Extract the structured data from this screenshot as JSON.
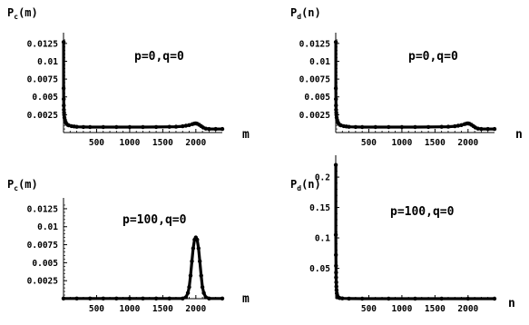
{
  "chart_data": [
    {
      "type": "scatter",
      "ylabel": "P",
      "ylabel_sub": "c",
      "ylabel_arg": "(m)",
      "xlabel": "m",
      "annotation": "p=0,q=0",
      "xlim": [
        0,
        2400
      ],
      "ylim": [
        0,
        0.0135
      ],
      "xticks": [
        500,
        1000,
        1500,
        2000
      ],
      "xtick_labels": [
        "500",
        "1000",
        "1500",
        "2000"
      ],
      "yticks": [
        0.0025,
        0.005,
        0.0075,
        0.01,
        0.0125
      ],
      "ytick_labels": [
        "0.0025",
        "0.005",
        "0.0075",
        "0.01",
        "0.0125"
      ],
      "points": [
        [
          1,
          0.0127
        ],
        [
          2,
          0.0062
        ],
        [
          3,
          0.0047
        ],
        [
          4,
          0.0038
        ],
        [
          6,
          0.0032
        ],
        [
          8,
          0.0028
        ],
        [
          10,
          0.0025
        ],
        [
          14,
          0.0021
        ],
        [
          20,
          0.0018
        ],
        [
          30,
          0.0015
        ],
        [
          40,
          0.0013
        ],
        [
          60,
          0.0011
        ],
        [
          80,
          0.001
        ],
        [
          120,
          0.0009
        ],
        [
          160,
          0.00085
        ],
        [
          200,
          0.0008
        ],
        [
          300,
          0.00078
        ],
        [
          400,
          0.00077
        ],
        [
          600,
          0.00076
        ],
        [
          800,
          0.00076
        ],
        [
          1000,
          0.00076
        ],
        [
          1200,
          0.00077
        ],
        [
          1400,
          0.00078
        ],
        [
          1600,
          0.0008
        ],
        [
          1700,
          0.00082
        ],
        [
          1800,
          0.00088
        ],
        [
          1850,
          0.00095
        ],
        [
          1900,
          0.00105
        ],
        [
          1950,
          0.00118
        ],
        [
          1980,
          0.00126
        ],
        [
          2000,
          0.00128
        ],
        [
          2020,
          0.00124
        ],
        [
          2050,
          0.0011
        ],
        [
          2080,
          0.0009
        ],
        [
          2110,
          0.0007
        ],
        [
          2150,
          0.00055
        ],
        [
          2200,
          0.0005
        ],
        [
          2300,
          0.0005
        ],
        [
          2400,
          0.0005
        ]
      ]
    },
    {
      "type": "scatter",
      "ylabel": "P",
      "ylabel_sub": "d",
      "ylabel_arg": "(n)",
      "xlabel": "n",
      "annotation": "p=0,q=0",
      "xlim": [
        0,
        2400
      ],
      "ylim": [
        0,
        0.0135
      ],
      "xticks": [
        500,
        1000,
        1500,
        2000
      ],
      "xtick_labels": [
        "500",
        "1000",
        "1500",
        "2000"
      ],
      "yticks": [
        0.0025,
        0.005,
        0.0075,
        0.01,
        0.0125
      ],
      "ytick_labels": [
        "0.0025",
        "0.005",
        "0.0075",
        "0.01",
        "0.0125"
      ],
      "points": [
        [
          1,
          0.0127
        ],
        [
          2,
          0.0062
        ],
        [
          3,
          0.0047
        ],
        [
          4,
          0.0038
        ],
        [
          6,
          0.0032
        ],
        [
          8,
          0.0028
        ],
        [
          10,
          0.0025
        ],
        [
          14,
          0.0021
        ],
        [
          20,
          0.0018
        ],
        [
          30,
          0.0015
        ],
        [
          40,
          0.0013
        ],
        [
          60,
          0.0011
        ],
        [
          80,
          0.001
        ],
        [
          120,
          0.0009
        ],
        [
          160,
          0.00085
        ],
        [
          200,
          0.0008
        ],
        [
          300,
          0.00078
        ],
        [
          400,
          0.00077
        ],
        [
          600,
          0.00076
        ],
        [
          800,
          0.00076
        ],
        [
          1000,
          0.00076
        ],
        [
          1200,
          0.00077
        ],
        [
          1400,
          0.00078
        ],
        [
          1600,
          0.0008
        ],
        [
          1700,
          0.00082
        ],
        [
          1800,
          0.00088
        ],
        [
          1850,
          0.00095
        ],
        [
          1900,
          0.00105
        ],
        [
          1950,
          0.00118
        ],
        [
          1980,
          0.00126
        ],
        [
          2000,
          0.00128
        ],
        [
          2020,
          0.00124
        ],
        [
          2050,
          0.0011
        ],
        [
          2080,
          0.0009
        ],
        [
          2110,
          0.0007
        ],
        [
          2150,
          0.00055
        ],
        [
          2200,
          0.0005
        ],
        [
          2300,
          0.0005
        ],
        [
          2400,
          0.0005
        ]
      ]
    },
    {
      "type": "scatter",
      "ylabel": "P",
      "ylabel_sub": "c",
      "ylabel_arg": "(m)",
      "xlabel": "m",
      "annotation": "p=100,q=0",
      "xlim": [
        0,
        2400
      ],
      "ylim": [
        0,
        0.0135
      ],
      "xticks": [
        500,
        1000,
        1500,
        2000
      ],
      "xtick_labels": [
        "500",
        "1000",
        "1500",
        "2000"
      ],
      "yticks": [
        0.0025,
        0.005,
        0.0075,
        0.01,
        0.0125
      ],
      "ytick_labels": [
        "0.0025",
        "0.005",
        "0.0075",
        "0.01",
        "0.0125"
      ],
      "points": [
        [
          0,
          2e-05
        ],
        [
          200,
          2e-05
        ],
        [
          400,
          2e-05
        ],
        [
          600,
          2e-05
        ],
        [
          800,
          2e-05
        ],
        [
          1000,
          2e-05
        ],
        [
          1200,
          2e-05
        ],
        [
          1400,
          2e-05
        ],
        [
          1600,
          2e-05
        ],
        [
          1800,
          3e-05
        ],
        [
          1850,
          0.0002
        ],
        [
          1880,
          0.0008
        ],
        [
          1900,
          0.0016
        ],
        [
          1920,
          0.0032
        ],
        [
          1940,
          0.0052
        ],
        [
          1960,
          0.007
        ],
        [
          1980,
          0.0082
        ],
        [
          2000,
          0.0085
        ],
        [
          2020,
          0.0082
        ],
        [
          2040,
          0.007
        ],
        [
          2060,
          0.0052
        ],
        [
          2080,
          0.0032
        ],
        [
          2100,
          0.0016
        ],
        [
          2120,
          0.0008
        ],
        [
          2150,
          0.0002
        ],
        [
          2200,
          3e-05
        ],
        [
          2400,
          2e-05
        ]
      ]
    },
    {
      "type": "scatter",
      "ylabel": "P",
      "ylabel_sub": "d",
      "ylabel_arg": "(n)",
      "xlabel": "n",
      "annotation": "p=100,q=0",
      "xlim": [
        0,
        2400
      ],
      "ylim": [
        0,
        0.23
      ],
      "xticks": [
        500,
        1000,
        1500,
        2000
      ],
      "xtick_labels": [
        "500",
        "1000",
        "1500",
        "2000"
      ],
      "yticks": [
        0.05,
        0.1,
        0.15,
        0.2
      ],
      "ytick_labels": [
        "0.05",
        "0.1",
        "0.15",
        "0.2"
      ],
      "points": [
        [
          1,
          0.22
        ],
        [
          2,
          0.105
        ],
        [
          3,
          0.072
        ],
        [
          4,
          0.054
        ],
        [
          5,
          0.043
        ],
        [
          6,
          0.035
        ],
        [
          8,
          0.027
        ],
        [
          10,
          0.02
        ],
        [
          13,
          0.014
        ],
        [
          17,
          0.009
        ],
        [
          22,
          0.006
        ],
        [
          30,
          0.0035
        ],
        [
          40,
          0.002
        ],
        [
          60,
          0.001
        ],
        [
          100,
          0.0004
        ],
        [
          200,
          0.0001
        ],
        [
          400,
          2e-05
        ],
        [
          800,
          1e-05
        ],
        [
          1200,
          1e-05
        ],
        [
          1600,
          1e-05
        ],
        [
          2000,
          1e-05
        ],
        [
          2400,
          1e-05
        ]
      ]
    }
  ]
}
